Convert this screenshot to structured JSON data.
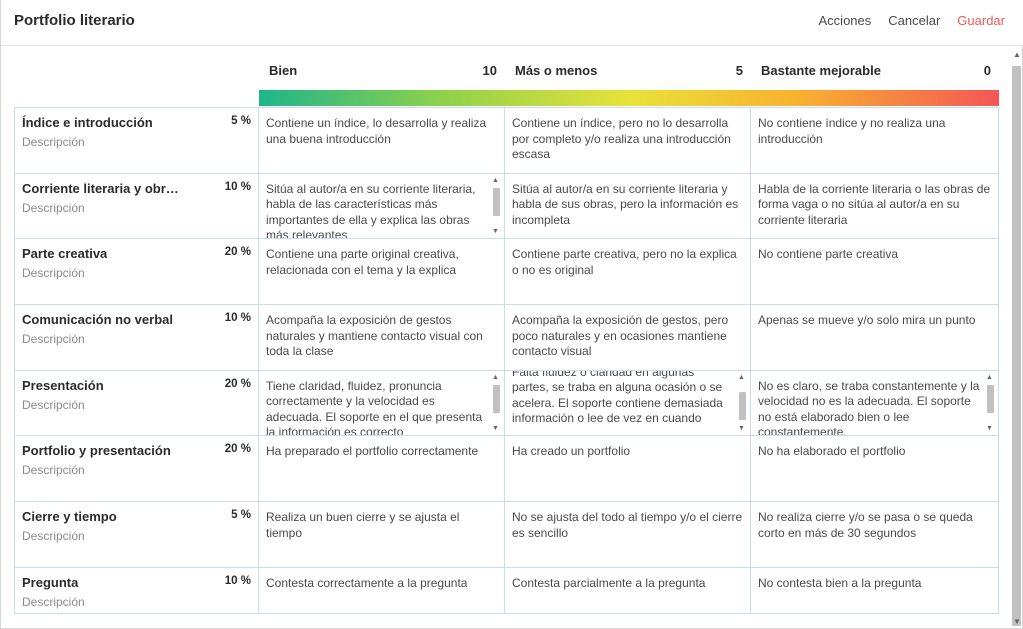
{
  "header": {
    "title": "Portfolio literario",
    "actions": {
      "acciones": "Acciones",
      "cancelar": "Cancelar",
      "guardar": "Guardar"
    }
  },
  "colors": {
    "save": "#f15a5a",
    "grid_line": "#c9ddf0",
    "gradient_start": "#1fb58a",
    "gradient_end": "#f45656"
  },
  "levels": [
    {
      "name": "Bien",
      "points": "10"
    },
    {
      "name": "Más o menos",
      "points": "5"
    },
    {
      "name": "Bastante mejorable",
      "points": "0"
    }
  ],
  "criteria": [
    {
      "name": "Índice e introducción",
      "weight": "5 %",
      "description": "Descripción",
      "cells": [
        "Contiene un índice, lo desarrolla y realiza una buena introducción",
        "Contiene un índice, pero no lo desarrolla por completo y/o realiza una introducción escasa",
        "No contiene índice y no realiza una introducción"
      ]
    },
    {
      "name": "Corriente literaria y obr…",
      "weight": "10 %",
      "description": "Descripción",
      "cells": [
        "Sitúa al autor/a en su corriente literaria, habla de las características más importantes de ella y explica las obras más relevantes",
        "Sitúa al autor/a en su corriente literaria y habla de sus obras, pero la información es incompleta",
        "Habla de la corriente literaria o las obras de forma vaga o no sitúa al autor/a en su corriente literaria"
      ]
    },
    {
      "name": "Parte creativa",
      "weight": "20 %",
      "description": "Descripción",
      "cells": [
        "Contiene una parte original creativa, relacionada con el tema y la explica",
        "Contiene parte creativa, pero no la explica o no es original",
        "No contiene parte creativa"
      ]
    },
    {
      "name": "Comunicación no verbal",
      "weight": "10 %",
      "description": "Descripción",
      "cells": [
        "Acompaña la exposición de gestos naturales y mantiene contacto visual con toda la clase",
        "Acompaña la exposición de gestos, pero poco naturales y en ocasiones mantiene contacto visual",
        "Apenas se mueve y/o solo mira un punto"
      ]
    },
    {
      "name": "Presentación",
      "weight": "20 %",
      "description": "Descripción",
      "cells": [
        "Tiene claridad, fluidez, pronuncia correctamente y la velocidad es adecuada. El soporte en el que presenta la información es correcto",
        "Falta fluidez o claridad en algunas partes, se traba en alguna ocasión o se acelera. El soporte contiene demasiada información o lee de vez en cuando",
        "No es claro, se traba constantemente y la velocidad no es la adecuada. El soporte no está elaborado bien o lee constantemente"
      ]
    },
    {
      "name": "Portfolio y presentación",
      "weight": "20 %",
      "description": "Descripción",
      "cells": [
        "Ha preparado el portfolio correctamente",
        "Ha creado un portfolio",
        "No ha elaborado el portfolio"
      ]
    },
    {
      "name": "Cierre y tiempo",
      "weight": "5 %",
      "description": "Descripción",
      "cells": [
        "Realiza un buen cierre y se ajusta el tiempo",
        "No se ajusta del todo al tiempo y/o el cierre es sencillo",
        "No realiza cierre y/o se pasa o se queda corto en más de 30 segundos"
      ]
    },
    {
      "name": "Pregunta",
      "weight": "10 %",
      "description": "Descripción",
      "cells": [
        "Contesta correctamente a la pregunta",
        "Contesta parcialmente a la pregunta",
        "No contesta bien a la pregunta"
      ]
    }
  ]
}
